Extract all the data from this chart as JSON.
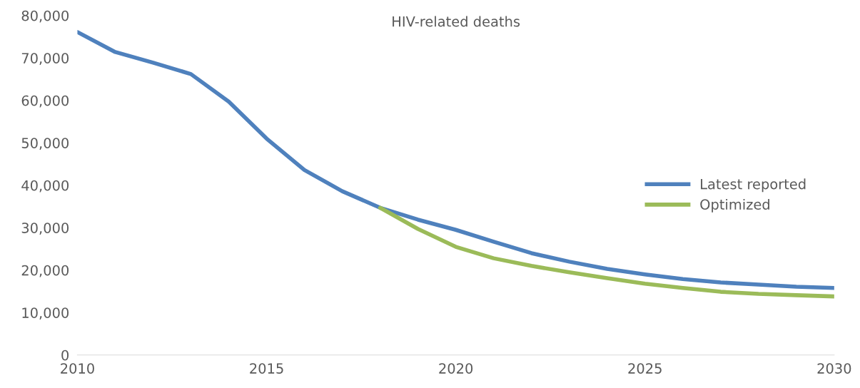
{
  "chart_data": {
    "type": "line",
    "title": "HIV-related deaths",
    "x": [
      2010,
      2011,
      2012,
      2013,
      2014,
      2015,
      2016,
      2017,
      2018,
      2019,
      2020,
      2021,
      2022,
      2023,
      2024,
      2025,
      2026,
      2027,
      2028,
      2029,
      2030
    ],
    "series": [
      {
        "name": "Latest reported",
        "color": "#4f81bd",
        "values": [
          76100,
          71400,
          68900,
          66200,
          59700,
          51000,
          43600,
          38600,
          34700,
          31900,
          29500,
          26700,
          24000,
          22000,
          20300,
          19000,
          17900,
          17100,
          16600,
          16100,
          15800
        ]
      },
      {
        "name": "Optimized",
        "color": "#9bbb59",
        "values": [
          null,
          null,
          null,
          null,
          null,
          null,
          null,
          null,
          34700,
          29700,
          25500,
          22800,
          21000,
          19500,
          18100,
          16800,
          15800,
          14900,
          14400,
          14100,
          13800
        ]
      }
    ],
    "xlim": [
      2010,
      2030
    ],
    "xticks": [
      2010,
      2015,
      2020,
      2025,
      2030
    ],
    "ylim": [
      0,
      80000
    ],
    "yticks": [
      {
        "value": 0,
        "label": "0"
      },
      {
        "value": 10000,
        "label": "10,000"
      },
      {
        "value": 20000,
        "label": "20,000"
      },
      {
        "value": 30000,
        "label": "30,000"
      },
      {
        "value": 40000,
        "label": "40,000"
      },
      {
        "value": 50000,
        "label": "50,000"
      },
      {
        "value": 60000,
        "label": "60,000"
      },
      {
        "value": 70000,
        "label": "70,000"
      },
      {
        "value": 80000,
        "label": "80,000"
      }
    ],
    "legend": "right",
    "grid": false,
    "marker": "none",
    "line_style": "solid"
  }
}
